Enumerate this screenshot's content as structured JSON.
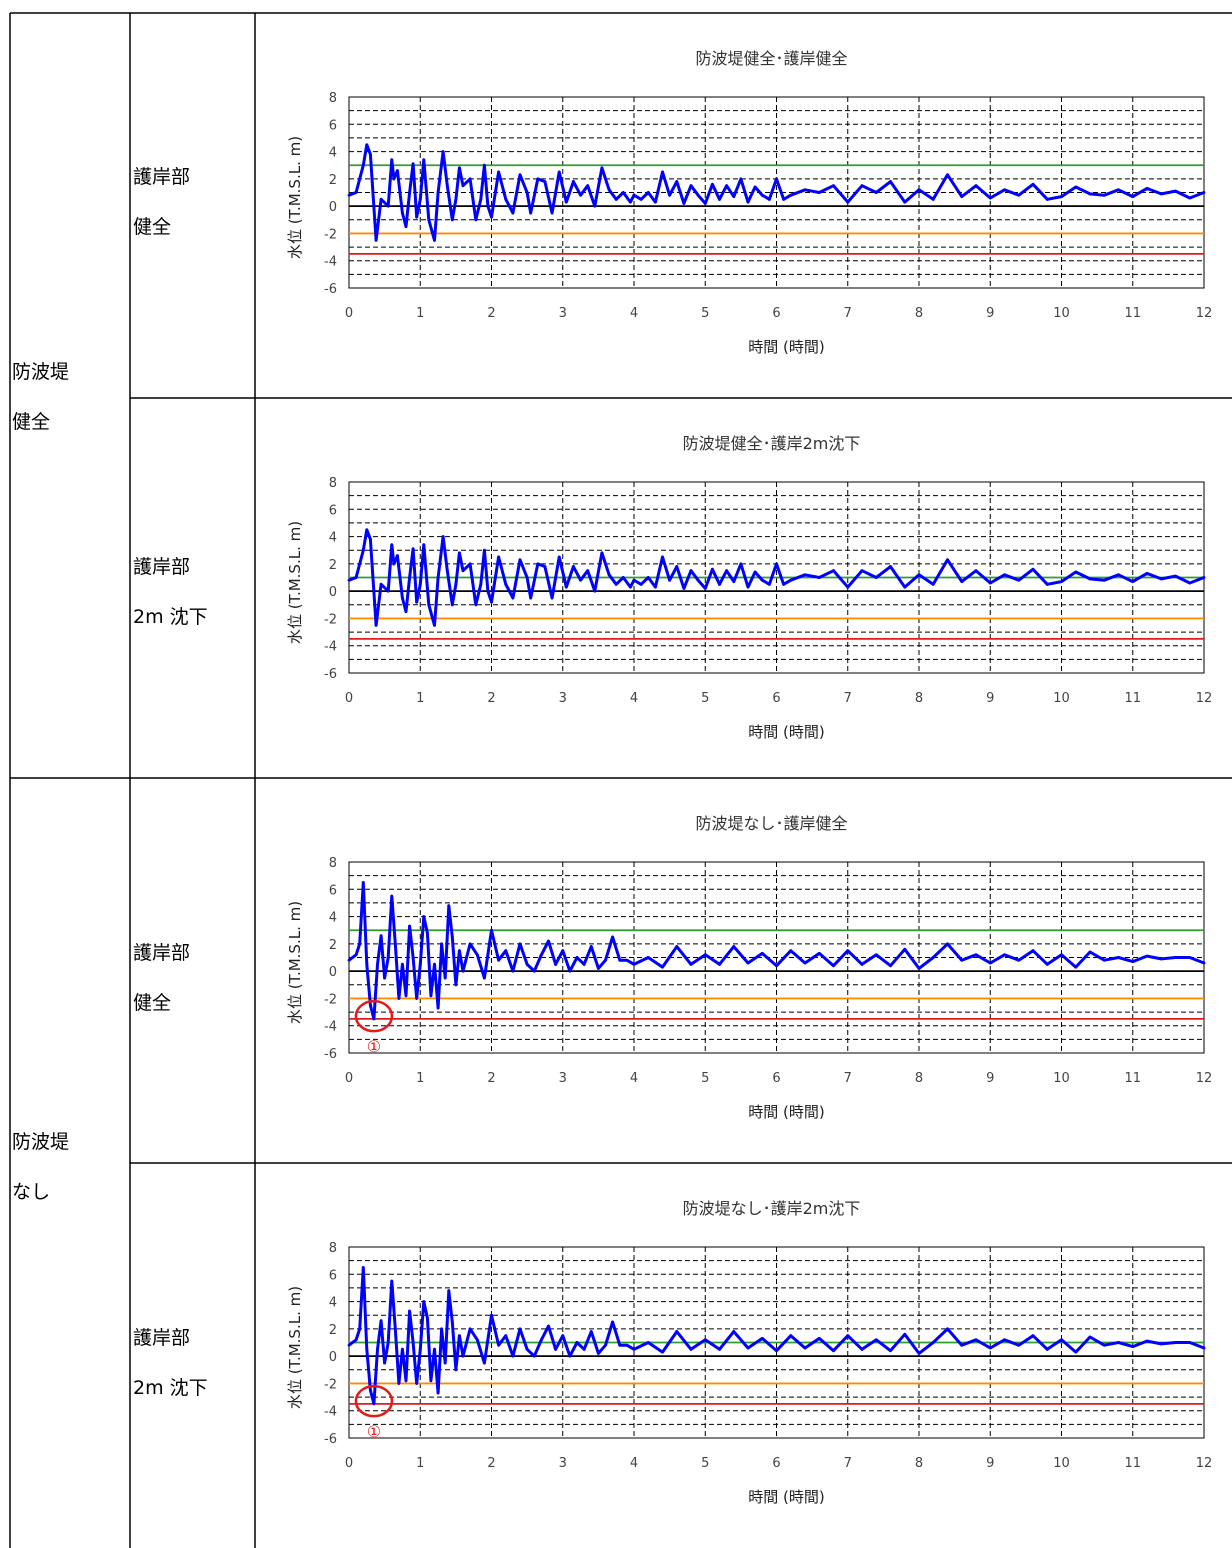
{
  "rows": [
    {
      "outer": [
        "防波堤",
        "健全"
      ],
      "inner": [
        "護岸部",
        "健全"
      ],
      "chart_index": 0
    },
    {
      "outer": null,
      "inner": [
        "護岸部",
        "2m 沈下"
      ],
      "chart_index": 1
    },
    {
      "outer": [
        "防波堤",
        "なし"
      ],
      "inner": [
        "護岸部",
        "健全"
      ],
      "chart_index": 2
    },
    {
      "outer": null,
      "inner": [
        "護岸部",
        "2m 沈下"
      ],
      "chart_index": 3
    }
  ],
  "colors": {
    "series": "#0000ff",
    "green_line": "#2e9e2e",
    "orange_line": "#ff8c00",
    "red_line": "#e31a1a",
    "zero_line": "#000000",
    "annotation": "#e31a1a"
  },
  "chart_data": [
    {
      "type": "line",
      "title": "防波堤健全･護岸健全",
      "xlabel": "時間 (時間)",
      "ylabel": "水位 (T.M.S.L. m)",
      "xlim": [
        0,
        12
      ],
      "ylim": [
        -6,
        8
      ],
      "xticks": [
        "0",
        "1",
        "2",
        "3",
        "4",
        "5",
        "6",
        "7",
        "8",
        "9",
        "10",
        "11",
        "12"
      ],
      "yticks": [
        "8",
        "6",
        "4",
        "2",
        "0",
        "-2",
        "-4",
        "-6"
      ],
      "grid": true,
      "reference_lines": [
        {
          "y": 3.0,
          "color": "green"
        },
        {
          "y": 0.0,
          "color": "black"
        },
        {
          "y": -2.0,
          "color": "orange"
        },
        {
          "y": -3.5,
          "color": "red"
        }
      ],
      "annotation": null,
      "series": [
        {
          "x": [
            0,
            0.1,
            0.2,
            0.25,
            0.3,
            0.38,
            0.45,
            0.55,
            0.6,
            0.63,
            0.68,
            0.75,
            0.8,
            0.85,
            0.9,
            0.95,
            1.0,
            1.05,
            1.12,
            1.2,
            1.25,
            1.32,
            1.38,
            1.45,
            1.5,
            1.55,
            1.6,
            1.7,
            1.78,
            1.85,
            1.9,
            1.95,
            2.0,
            2.1,
            2.2,
            2.3,
            2.4,
            2.5,
            2.55,
            2.65,
            2.75,
            2.85,
            2.95,
            3.05,
            3.15,
            3.25,
            3.35,
            3.45,
            3.55,
            3.65,
            3.75,
            3.85,
            3.95,
            4.0,
            4.1,
            4.2,
            4.3,
            4.4,
            4.5,
            4.6,
            4.7,
            4.8,
            4.9,
            5.0,
            5.1,
            5.2,
            5.3,
            5.4,
            5.5,
            5.6,
            5.7,
            5.8,
            5.9,
            6.0,
            6.1,
            6.2,
            6.4,
            6.6,
            6.8,
            7.0,
            7.2,
            7.4,
            7.6,
            7.8,
            8.0,
            8.2,
            8.4,
            8.6,
            8.8,
            9.0,
            9.2,
            9.4,
            9.6,
            9.8,
            10.0,
            10.2,
            10.4,
            10.6,
            10.8,
            11.0,
            11.2,
            11.4,
            11.6,
            11.8,
            12.0
          ],
          "y": [
            0.8,
            1.0,
            3.0,
            4.5,
            3.8,
            -2.5,
            0.5,
            0.0,
            3.4,
            2.0,
            2.6,
            -0.5,
            -1.5,
            1.0,
            3.1,
            -0.8,
            0.5,
            3.4,
            -1.0,
            -2.5,
            1.0,
            4.0,
            1.5,
            -1.0,
            0.5,
            2.8,
            1.5,
            2.0,
            -1.0,
            0.5,
            3.0,
            0.0,
            -0.8,
            2.5,
            0.5,
            -0.5,
            2.3,
            1.0,
            -0.5,
            2.0,
            1.8,
            -0.5,
            2.5,
            0.3,
            1.8,
            0.8,
            1.5,
            0.0,
            2.8,
            1.2,
            0.5,
            1.0,
            0.3,
            0.8,
            0.5,
            1.0,
            0.3,
            2.5,
            0.8,
            1.8,
            0.2,
            1.5,
            0.8,
            0.2,
            1.6,
            0.5,
            1.5,
            0.7,
            2.0,
            0.3,
            1.4,
            0.8,
            0.5,
            2.0,
            0.5,
            0.8,
            1.2,
            1.0,
            1.5,
            0.3,
            1.5,
            1.0,
            1.8,
            0.3,
            1.2,
            0.5,
            2.3,
            0.7,
            1.5,
            0.6,
            1.2,
            0.8,
            1.6,
            0.5,
            0.7,
            1.4,
            0.9,
            0.8,
            1.2,
            0.7,
            1.3,
            0.9,
            1.1,
            0.6,
            1.0
          ]
        }
      ]
    },
    {
      "type": "line",
      "title": "防波堤健全･護岸2m沈下",
      "xlabel": "時間 (時間)",
      "ylabel": "水位 (T.M.S.L. m)",
      "xlim": [
        0,
        12
      ],
      "ylim": [
        -6,
        8
      ],
      "xticks": [
        "0",
        "1",
        "2",
        "3",
        "4",
        "5",
        "6",
        "7",
        "8",
        "9",
        "10",
        "11",
        "12"
      ],
      "yticks": [
        "8",
        "6",
        "4",
        "2",
        "0",
        "-2",
        "-4",
        "-6"
      ],
      "grid": true,
      "reference_lines": [
        {
          "y": 1.0,
          "color": "green"
        },
        {
          "y": 0.0,
          "color": "black"
        },
        {
          "y": -2.0,
          "color": "orange"
        },
        {
          "y": -3.5,
          "color": "red"
        }
      ],
      "annotation": null,
      "series": [
        {
          "x": [
            0,
            0.1,
            0.2,
            0.25,
            0.3,
            0.38,
            0.45,
            0.55,
            0.6,
            0.63,
            0.68,
            0.75,
            0.8,
            0.85,
            0.9,
            0.95,
            1.0,
            1.05,
            1.12,
            1.2,
            1.25,
            1.32,
            1.38,
            1.45,
            1.5,
            1.55,
            1.6,
            1.7,
            1.78,
            1.85,
            1.9,
            1.95,
            2.0,
            2.1,
            2.2,
            2.3,
            2.4,
            2.5,
            2.55,
            2.65,
            2.75,
            2.85,
            2.95,
            3.05,
            3.15,
            3.25,
            3.35,
            3.45,
            3.55,
            3.65,
            3.75,
            3.85,
            3.95,
            4.0,
            4.1,
            4.2,
            4.3,
            4.4,
            4.5,
            4.6,
            4.7,
            4.8,
            4.9,
            5.0,
            5.1,
            5.2,
            5.3,
            5.4,
            5.5,
            5.6,
            5.7,
            5.8,
            5.9,
            6.0,
            6.1,
            6.2,
            6.4,
            6.6,
            6.8,
            7.0,
            7.2,
            7.4,
            7.6,
            7.8,
            8.0,
            8.2,
            8.4,
            8.6,
            8.8,
            9.0,
            9.2,
            9.4,
            9.6,
            9.8,
            10.0,
            10.2,
            10.4,
            10.6,
            10.8,
            11.0,
            11.2,
            11.4,
            11.6,
            11.8,
            12.0
          ],
          "y": [
            0.8,
            1.0,
            3.0,
            4.5,
            3.8,
            -2.5,
            0.5,
            0.0,
            3.4,
            2.0,
            2.6,
            -0.5,
            -1.5,
            1.0,
            3.1,
            -0.8,
            0.5,
            3.4,
            -1.0,
            -2.5,
            1.0,
            4.0,
            1.5,
            -1.0,
            0.5,
            2.8,
            1.5,
            2.0,
            -1.0,
            0.5,
            3.0,
            0.0,
            -0.8,
            2.5,
            0.5,
            -0.5,
            2.3,
            1.0,
            -0.5,
            2.0,
            1.8,
            -0.5,
            2.5,
            0.3,
            1.8,
            0.8,
            1.5,
            0.0,
            2.8,
            1.2,
            0.5,
            1.0,
            0.3,
            0.8,
            0.5,
            1.0,
            0.3,
            2.5,
            0.8,
            1.8,
            0.2,
            1.5,
            0.8,
            0.2,
            1.6,
            0.5,
            1.5,
            0.7,
            2.0,
            0.3,
            1.4,
            0.8,
            0.5,
            2.0,
            0.5,
            0.8,
            1.2,
            1.0,
            1.5,
            0.3,
            1.5,
            1.0,
            1.8,
            0.3,
            1.2,
            0.5,
            2.3,
            0.7,
            1.5,
            0.6,
            1.2,
            0.8,
            1.6,
            0.5,
            0.7,
            1.4,
            0.9,
            0.8,
            1.2,
            0.7,
            1.3,
            0.9,
            1.1,
            0.6,
            1.0
          ]
        }
      ]
    },
    {
      "type": "line",
      "title": "防波堤なし･護岸健全",
      "xlabel": "時間 (時間)",
      "ylabel": "水位 (T.M.S.L. m)",
      "xlim": [
        0,
        12
      ],
      "ylim": [
        -6,
        8
      ],
      "xticks": [
        "0",
        "1",
        "2",
        "3",
        "4",
        "5",
        "6",
        "7",
        "8",
        "9",
        "10",
        "11",
        "12"
      ],
      "yticks": [
        "8",
        "6",
        "4",
        "2",
        "0",
        "-2",
        "-4",
        "-6"
      ],
      "grid": true,
      "reference_lines": [
        {
          "y": 3.0,
          "color": "green"
        },
        {
          "y": 0.0,
          "color": "black"
        },
        {
          "y": -2.0,
          "color": "orange"
        },
        {
          "y": -3.5,
          "color": "red"
        }
      ],
      "annotation": {
        "x": 0.35,
        "y": -3.3,
        "label": "①"
      },
      "series": [
        {
          "x": [
            0,
            0.1,
            0.15,
            0.2,
            0.25,
            0.3,
            0.35,
            0.4,
            0.45,
            0.5,
            0.55,
            0.6,
            0.65,
            0.7,
            0.75,
            0.8,
            0.85,
            0.9,
            0.95,
            1.0,
            1.05,
            1.1,
            1.15,
            1.2,
            1.25,
            1.3,
            1.35,
            1.4,
            1.45,
            1.5,
            1.55,
            1.6,
            1.7,
            1.8,
            1.9,
            2.0,
            2.1,
            2.2,
            2.3,
            2.4,
            2.5,
            2.6,
            2.7,
            2.8,
            2.9,
            3.0,
            3.1,
            3.2,
            3.3,
            3.4,
            3.5,
            3.6,
            3.7,
            3.8,
            3.9,
            4.0,
            4.2,
            4.4,
            4.6,
            4.8,
            5.0,
            5.2,
            5.4,
            5.6,
            5.8,
            6.0,
            6.2,
            6.4,
            6.6,
            6.8,
            7.0,
            7.2,
            7.4,
            7.6,
            7.8,
            8.0,
            8.2,
            8.4,
            8.6,
            8.8,
            9.0,
            9.2,
            9.4,
            9.6,
            9.8,
            10.0,
            10.2,
            10.4,
            10.6,
            10.8,
            11.0,
            11.2,
            11.4,
            11.6,
            11.8,
            12.0
          ],
          "y": [
            0.8,
            1.2,
            2.0,
            6.5,
            0.5,
            -2.5,
            -3.5,
            0.5,
            2.6,
            -0.5,
            1.0,
            5.5,
            2.0,
            -2.0,
            0.5,
            -1.8,
            3.3,
            1.0,
            -2.0,
            0.5,
            4.0,
            2.8,
            -1.8,
            0.5,
            -2.7,
            2.0,
            -0.5,
            4.8,
            2.5,
            -1.0,
            1.5,
            0.0,
            2.0,
            1.2,
            -0.5,
            3.0,
            0.8,
            1.5,
            0.0,
            2.0,
            0.5,
            0.0,
            1.2,
            2.2,
            0.5,
            1.5,
            0.0,
            1.0,
            0.5,
            1.8,
            0.2,
            0.8,
            2.5,
            0.8,
            0.8,
            0.5,
            1.0,
            0.3,
            1.8,
            0.5,
            1.2,
            0.5,
            1.8,
            0.6,
            1.3,
            0.4,
            1.5,
            0.6,
            1.3,
            0.4,
            1.5,
            0.5,
            1.2,
            0.4,
            1.6,
            0.2,
            1.0,
            2.0,
            0.8,
            1.2,
            0.6,
            1.2,
            0.8,
            1.5,
            0.5,
            1.2,
            0.3,
            1.4,
            0.8,
            1.0,
            0.7,
            1.1,
            0.9,
            1.0,
            1.0,
            0.6
          ]
        }
      ]
    },
    {
      "type": "line",
      "title": "防波堤なし･護岸2m沈下",
      "xlabel": "時間 (時間)",
      "ylabel": "水位 (T.M.S.L. m)",
      "xlim": [
        0,
        12
      ],
      "ylim": [
        -6,
        8
      ],
      "xticks": [
        "0",
        "1",
        "2",
        "3",
        "4",
        "5",
        "6",
        "7",
        "8",
        "9",
        "10",
        "11",
        "12"
      ],
      "yticks": [
        "8",
        "6",
        "4",
        "2",
        "0",
        "-2",
        "-4",
        "-6"
      ],
      "grid": true,
      "reference_lines": [
        {
          "y": 1.0,
          "color": "green"
        },
        {
          "y": 0.0,
          "color": "black"
        },
        {
          "y": -2.0,
          "color": "orange"
        },
        {
          "y": -3.5,
          "color": "red"
        }
      ],
      "annotation": {
        "x": 0.35,
        "y": -3.3,
        "label": "①"
      },
      "series": [
        {
          "x": [
            0,
            0.1,
            0.15,
            0.2,
            0.25,
            0.3,
            0.35,
            0.4,
            0.45,
            0.5,
            0.55,
            0.6,
            0.65,
            0.7,
            0.75,
            0.8,
            0.85,
            0.9,
            0.95,
            1.0,
            1.05,
            1.1,
            1.15,
            1.2,
            1.25,
            1.3,
            1.35,
            1.4,
            1.45,
            1.5,
            1.55,
            1.6,
            1.7,
            1.8,
            1.9,
            2.0,
            2.1,
            2.2,
            2.3,
            2.4,
            2.5,
            2.6,
            2.7,
            2.8,
            2.9,
            3.0,
            3.1,
            3.2,
            3.3,
            3.4,
            3.5,
            3.6,
            3.7,
            3.8,
            3.9,
            4.0,
            4.2,
            4.4,
            4.6,
            4.8,
            5.0,
            5.2,
            5.4,
            5.6,
            5.8,
            6.0,
            6.2,
            6.4,
            6.6,
            6.8,
            7.0,
            7.2,
            7.4,
            7.6,
            7.8,
            8.0,
            8.2,
            8.4,
            8.6,
            8.8,
            9.0,
            9.2,
            9.4,
            9.6,
            9.8,
            10.0,
            10.2,
            10.4,
            10.6,
            10.8,
            11.0,
            11.2,
            11.4,
            11.6,
            11.8,
            12.0
          ],
          "y": [
            0.8,
            1.2,
            2.0,
            6.5,
            0.5,
            -2.5,
            -3.5,
            0.5,
            2.6,
            -0.5,
            1.0,
            5.5,
            2.0,
            -2.0,
            0.5,
            -1.8,
            3.3,
            1.0,
            -2.0,
            0.5,
            4.0,
            2.8,
            -1.8,
            0.5,
            -2.7,
            2.0,
            -0.5,
            4.8,
            2.5,
            -1.0,
            1.5,
            0.0,
            2.0,
            1.2,
            -0.5,
            3.0,
            0.8,
            1.5,
            0.0,
            2.0,
            0.5,
            0.0,
            1.2,
            2.2,
            0.5,
            1.5,
            0.0,
            1.0,
            0.5,
            1.8,
            0.2,
            0.8,
            2.5,
            0.8,
            0.8,
            0.5,
            1.0,
            0.3,
            1.8,
            0.5,
            1.2,
            0.5,
            1.8,
            0.6,
            1.3,
            0.4,
            1.5,
            0.6,
            1.3,
            0.4,
            1.5,
            0.5,
            1.2,
            0.4,
            1.6,
            0.2,
            1.0,
            2.0,
            0.8,
            1.2,
            0.6,
            1.2,
            0.8,
            1.5,
            0.5,
            1.2,
            0.3,
            1.4,
            0.8,
            1.0,
            0.7,
            1.1,
            0.9,
            1.0,
            1.0,
            0.6
          ]
        }
      ]
    }
  ]
}
